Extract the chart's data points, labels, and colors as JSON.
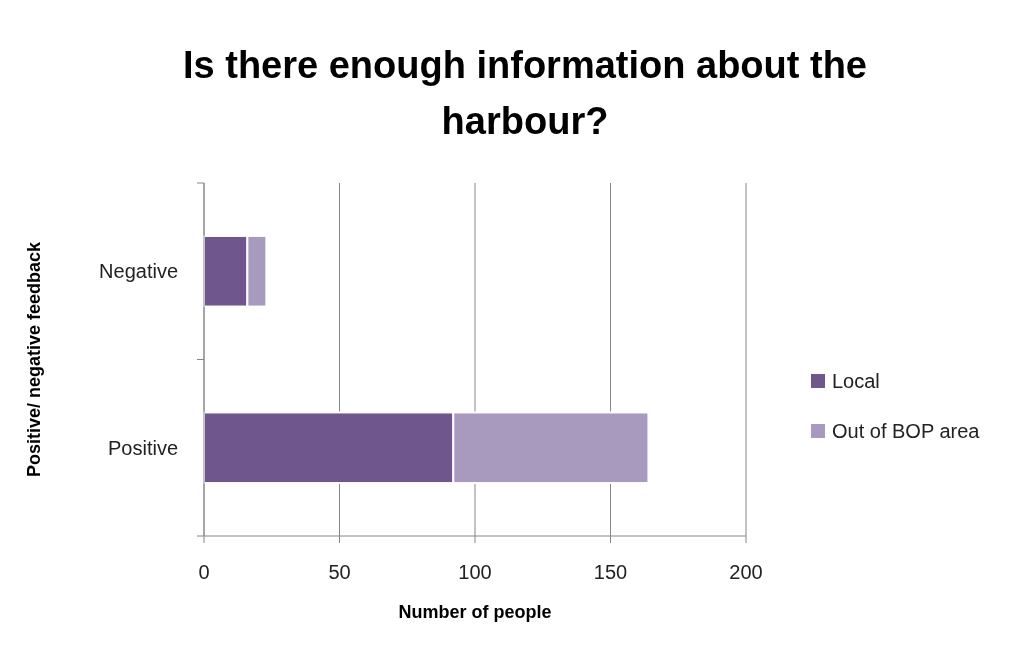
{
  "chart_data": {
    "type": "bar",
    "orientation": "horizontal",
    "stacked": true,
    "title": "Is there enough information about the harbour?",
    "xlabel": "Number of people",
    "ylabel": "Positive/ negative feedback",
    "categories": [
      "Negative",
      "Positive"
    ],
    "series": [
      {
        "name": "Local",
        "color": "#6f578e",
        "values": [
          16,
          92
        ]
      },
      {
        "name": "Out of BOP area",
        "color": "#a899be",
        "values": [
          7,
          72
        ]
      }
    ],
    "xlim": [
      0,
      200
    ],
    "xticks": [
      0,
      50,
      100,
      150,
      200
    ],
    "grid": "x",
    "legend": "right"
  }
}
